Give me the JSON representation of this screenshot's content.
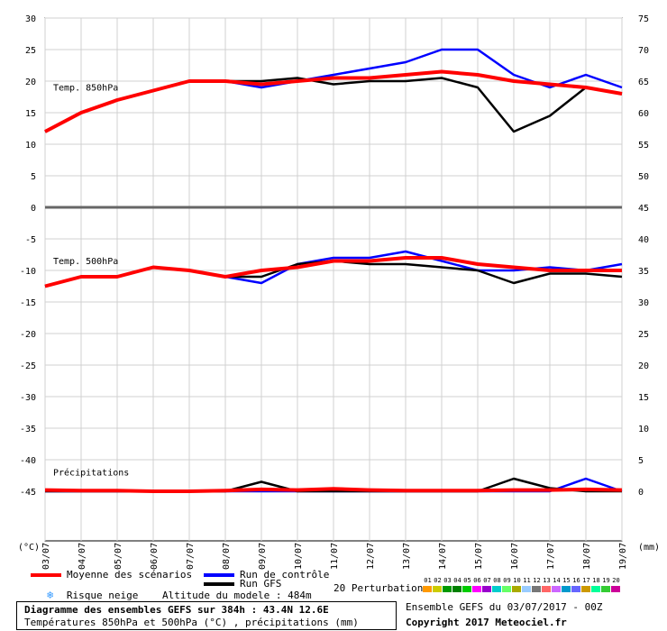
{
  "header": {
    "title": "Diagramme des ensembles GEFS sur 384h : 43.4N 12.6E",
    "subtitle": "Températures 850hPa et 500hPa (°C) , précipitations (mm)",
    "run_info": "Ensemble GEFS du 03/07/2017 - 00Z",
    "copyright": "Copyright 2017 Meteociel.fr",
    "altitude": "Altitude du modele : 484m"
  },
  "legend": {
    "mean": "Moyenne des scénarios",
    "control": "Run de contrôle",
    "gfs": "Run GFS",
    "snow": "Risque neige",
    "perturbations": "20 Perturbations",
    "pert_numbers": [
      "01",
      "02",
      "03",
      "04",
      "05",
      "06",
      "07",
      "08",
      "09",
      "10",
      "11",
      "12",
      "13",
      "14",
      "15",
      "16",
      "17",
      "18",
      "19",
      "20"
    ]
  },
  "colors": {
    "mean": "#ff0000",
    "control": "#0000ff",
    "gfs": "#000000",
    "grid": "#d0d0d0",
    "perturbations": [
      "#ff9900",
      "#cccc00",
      "#009900",
      "#008000",
      "#00cc00",
      "#ff00ff",
      "#9900cc",
      "#00cccc",
      "#66ff66",
      "#aaaa00",
      "#99ccff",
      "#777777",
      "#ff6666",
      "#cc66ff",
      "#0099cc",
      "#6666ff",
      "#cc9900",
      "#00ff99",
      "#33cc33",
      "#cc0099"
    ]
  },
  "chart_data": {
    "type": "line",
    "x": [
      "03/07",
      "04/07",
      "05/07",
      "06/07",
      "07/07",
      "08/07",
      "09/07",
      "10/07",
      "11/07",
      "12/07",
      "13/07",
      "14/07",
      "15/07",
      "16/07",
      "17/07",
      "18/07",
      "19/07"
    ],
    "panels": [
      {
        "label": "Temp. 850hPa",
        "y_left_ticks": [
          0,
          5,
          10,
          15,
          20,
          25,
          30
        ],
        "y_right_ticks": [
          45,
          50,
          55,
          60,
          65,
          70,
          75
        ],
        "ylim": [
          0,
          30
        ],
        "series": [
          {
            "name": "Moyenne des scénarios",
            "values": [
              12,
              15,
              17,
              18.5,
              20,
              20,
              19.5,
              20,
              20.5,
              20.5,
              21,
              21.5,
              21,
              20,
              19.5,
              19,
              18
            ]
          },
          {
            "name": "Run de contrôle",
            "values": [
              12,
              15,
              17,
              18.5,
              20,
              20,
              19,
              20,
              21,
              22,
              23,
              25,
              25,
              21,
              19,
              21,
              19
            ]
          },
          {
            "name": "Run GFS",
            "values": [
              12,
              15,
              17,
              18.5,
              20,
              20,
              20,
              20.5,
              19.5,
              20,
              20,
              20.5,
              19,
              12,
              14.5,
              19,
              18
            ]
          }
        ]
      },
      {
        "label": "Temp. 500hPa",
        "y_left_ticks": [
          -45,
          -40,
          -35,
          -30,
          -25,
          -20,
          -15,
          -10,
          -5
        ],
        "y_right_ticks": [
          0,
          5,
          10,
          15,
          20,
          25,
          30,
          35,
          40
        ],
        "ylim": [
          -45,
          -5
        ],
        "series": [
          {
            "name": "Moyenne des scénarios",
            "values": [
              -12.5,
              -11,
              -11,
              -9.5,
              -10,
              -11,
              -10,
              -9.5,
              -8.5,
              -8.5,
              -8,
              -8,
              -9,
              -9.5,
              -10,
              -10,
              -10
            ]
          },
          {
            "name": "Run de contrôle",
            "values": [
              -12.5,
              -11,
              -11,
              -9.5,
              -10,
              -11,
              -12,
              -9,
              -8,
              -8,
              -7,
              -8.5,
              -10,
              -10,
              -9.5,
              -10,
              -9
            ]
          },
          {
            "name": "Run GFS",
            "values": [
              -12.5,
              -11,
              -11,
              -9.5,
              -10,
              -11,
              -11,
              -9,
              -8.5,
              -9,
              -9,
              -9.5,
              -10,
              -12,
              -10.5,
              -10.5,
              -11
            ]
          }
        ]
      },
      {
        "label": "Précipitations",
        "y_right_ticks": [
          0,
          5
        ],
        "ylim": [
          0,
          10
        ],
        "series": [
          {
            "name": "Moyenne des scénarios",
            "values": [
              0.2,
              0.1,
              0.1,
              0,
              0,
              0.1,
              0.3,
              0.2,
              0.4,
              0.2,
              0.1,
              0.1,
              0.1,
              0.2,
              0.2,
              0.3,
              0.2
            ]
          },
          {
            "name": "Run de contrôle",
            "values": [
              0,
              0,
              0,
              0,
              0,
              0,
              0,
              0,
              0,
              0,
              0,
              0,
              0,
              0,
              0,
              2,
              0
            ]
          },
          {
            "name": "Run GFS",
            "values": [
              0,
              0,
              0,
              0,
              0,
              0,
              1.5,
              0,
              0,
              0,
              0,
              0,
              0,
              2,
              0.5,
              0,
              0
            ]
          }
        ]
      }
    ],
    "x_unit_left": "(°C)",
    "x_unit_right": "(mm)",
    "grid": true
  }
}
